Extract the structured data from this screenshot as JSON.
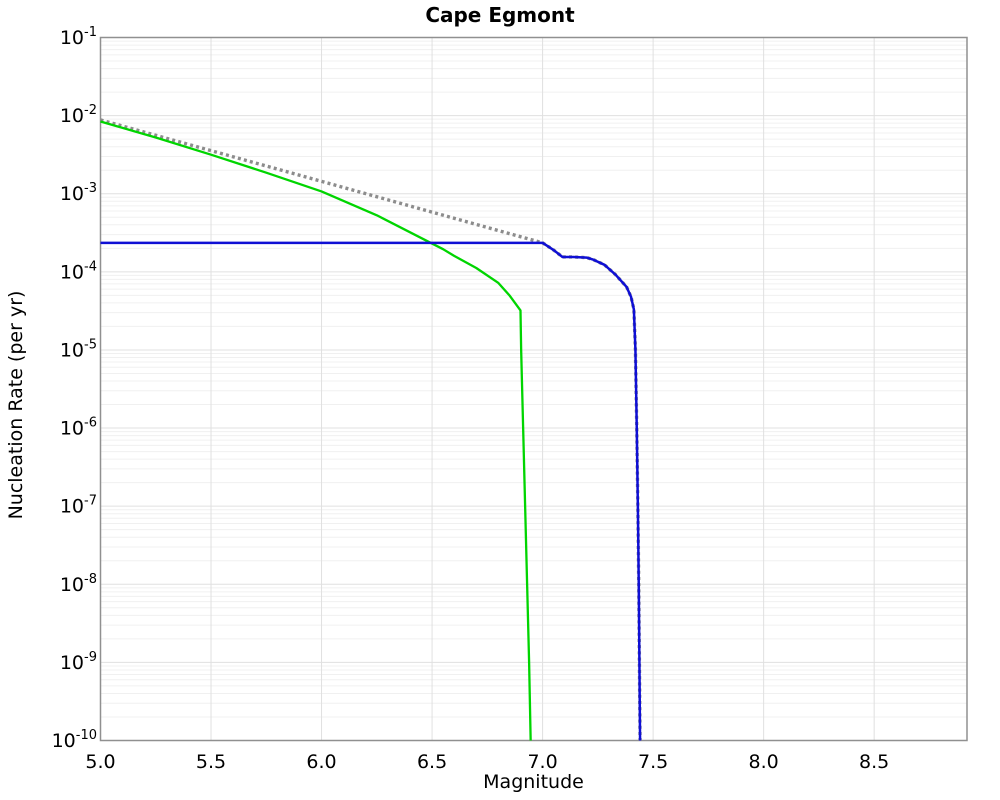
{
  "chart_data": {
    "type": "line",
    "title": "Cape Egmont",
    "xlabel": "Magnitude",
    "ylabel": "Nucleation Rate (per yr)",
    "xlim": [
      5.0,
      8.92
    ],
    "ylim": [
      1e-10,
      0.1
    ],
    "y_scale": "log",
    "grid": "on",
    "legend_position": "none",
    "x_ticks": [
      5.0,
      5.5,
      6.0,
      6.5,
      7.0,
      7.5,
      8.0,
      8.5
    ],
    "y_tick_exponents": [
      -1,
      -2,
      -3,
      -4,
      -5,
      -6,
      -7,
      -8,
      -9,
      -10
    ],
    "colors": {
      "grid_major": "#e0e0e0",
      "grid_minor": "#f0f0f0",
      "plot_border": "#909090",
      "text": "#000000"
    },
    "series": [
      {
        "name": "gutenberg-richter-dotted",
        "color": "#8c8c8c",
        "style": "dotted",
        "width": 3.4,
        "points": [
          [
            5.0,
            0.0088
          ],
          [
            5.5,
            0.00356
          ],
          [
            6.0,
            0.00144
          ],
          [
            6.5,
            0.000581
          ],
          [
            7.0,
            0.000235
          ],
          [
            7.05,
            0.00019
          ],
          [
            7.09,
            0.000155
          ],
          [
            7.14,
            0.000155
          ],
          [
            7.2,
            0.000152
          ],
          [
            7.23,
            0.000143
          ],
          [
            7.28,
            0.000123
          ],
          [
            7.33,
            9.2e-05
          ],
          [
            7.38,
            6.4e-05
          ],
          [
            7.4,
            4.8e-05
          ],
          [
            7.413,
            3.3e-05
          ],
          [
            7.42,
            1e-05
          ],
          [
            7.426,
            1e-06
          ],
          [
            7.431,
            1e-07
          ],
          [
            7.435,
            1e-08
          ],
          [
            7.438,
            1e-09
          ],
          [
            7.441,
            1e-10
          ]
        ]
      },
      {
        "name": "green-curve",
        "color": "#00d500",
        "style": "solid",
        "width": 2.3,
        "points": [
          [
            5.0,
            0.0084
          ],
          [
            5.25,
            0.00525
          ],
          [
            5.5,
            0.00316
          ],
          [
            5.75,
            0.00186
          ],
          [
            6.0,
            0.00107
          ],
          [
            6.25,
            0.00053
          ],
          [
            6.5,
            0.00023
          ],
          [
            6.55,
            0.000195
          ],
          [
            6.6,
            0.00016
          ],
          [
            6.7,
            0.000112
          ],
          [
            6.8,
            7.2e-05
          ],
          [
            6.85,
            5e-05
          ],
          [
            6.9,
            3.2e-05
          ],
          [
            6.903,
            1e-05
          ],
          [
            6.912,
            1e-06
          ],
          [
            6.921,
            1e-07
          ],
          [
            6.93,
            1e-08
          ],
          [
            6.939,
            1e-09
          ],
          [
            6.946,
            1e-10
          ]
        ]
      },
      {
        "name": "blue-curve",
        "color": "#0f0fd4",
        "style": "solid",
        "width": 2.5,
        "points": [
          [
            5.0,
            0.000235
          ],
          [
            7.0,
            0.000235
          ],
          [
            7.05,
            0.00019
          ],
          [
            7.09,
            0.000155
          ],
          [
            7.14,
            0.000155
          ],
          [
            7.2,
            0.000152
          ],
          [
            7.23,
            0.000143
          ],
          [
            7.28,
            0.000123
          ],
          [
            7.33,
            9.2e-05
          ],
          [
            7.38,
            6.4e-05
          ],
          [
            7.4,
            4.8e-05
          ],
          [
            7.413,
            3.3e-05
          ],
          [
            7.42,
            1e-05
          ],
          [
            7.426,
            1e-06
          ],
          [
            7.431,
            1e-07
          ],
          [
            7.435,
            1e-08
          ],
          [
            7.438,
            1e-09
          ],
          [
            7.441,
            1e-10
          ]
        ]
      }
    ]
  }
}
